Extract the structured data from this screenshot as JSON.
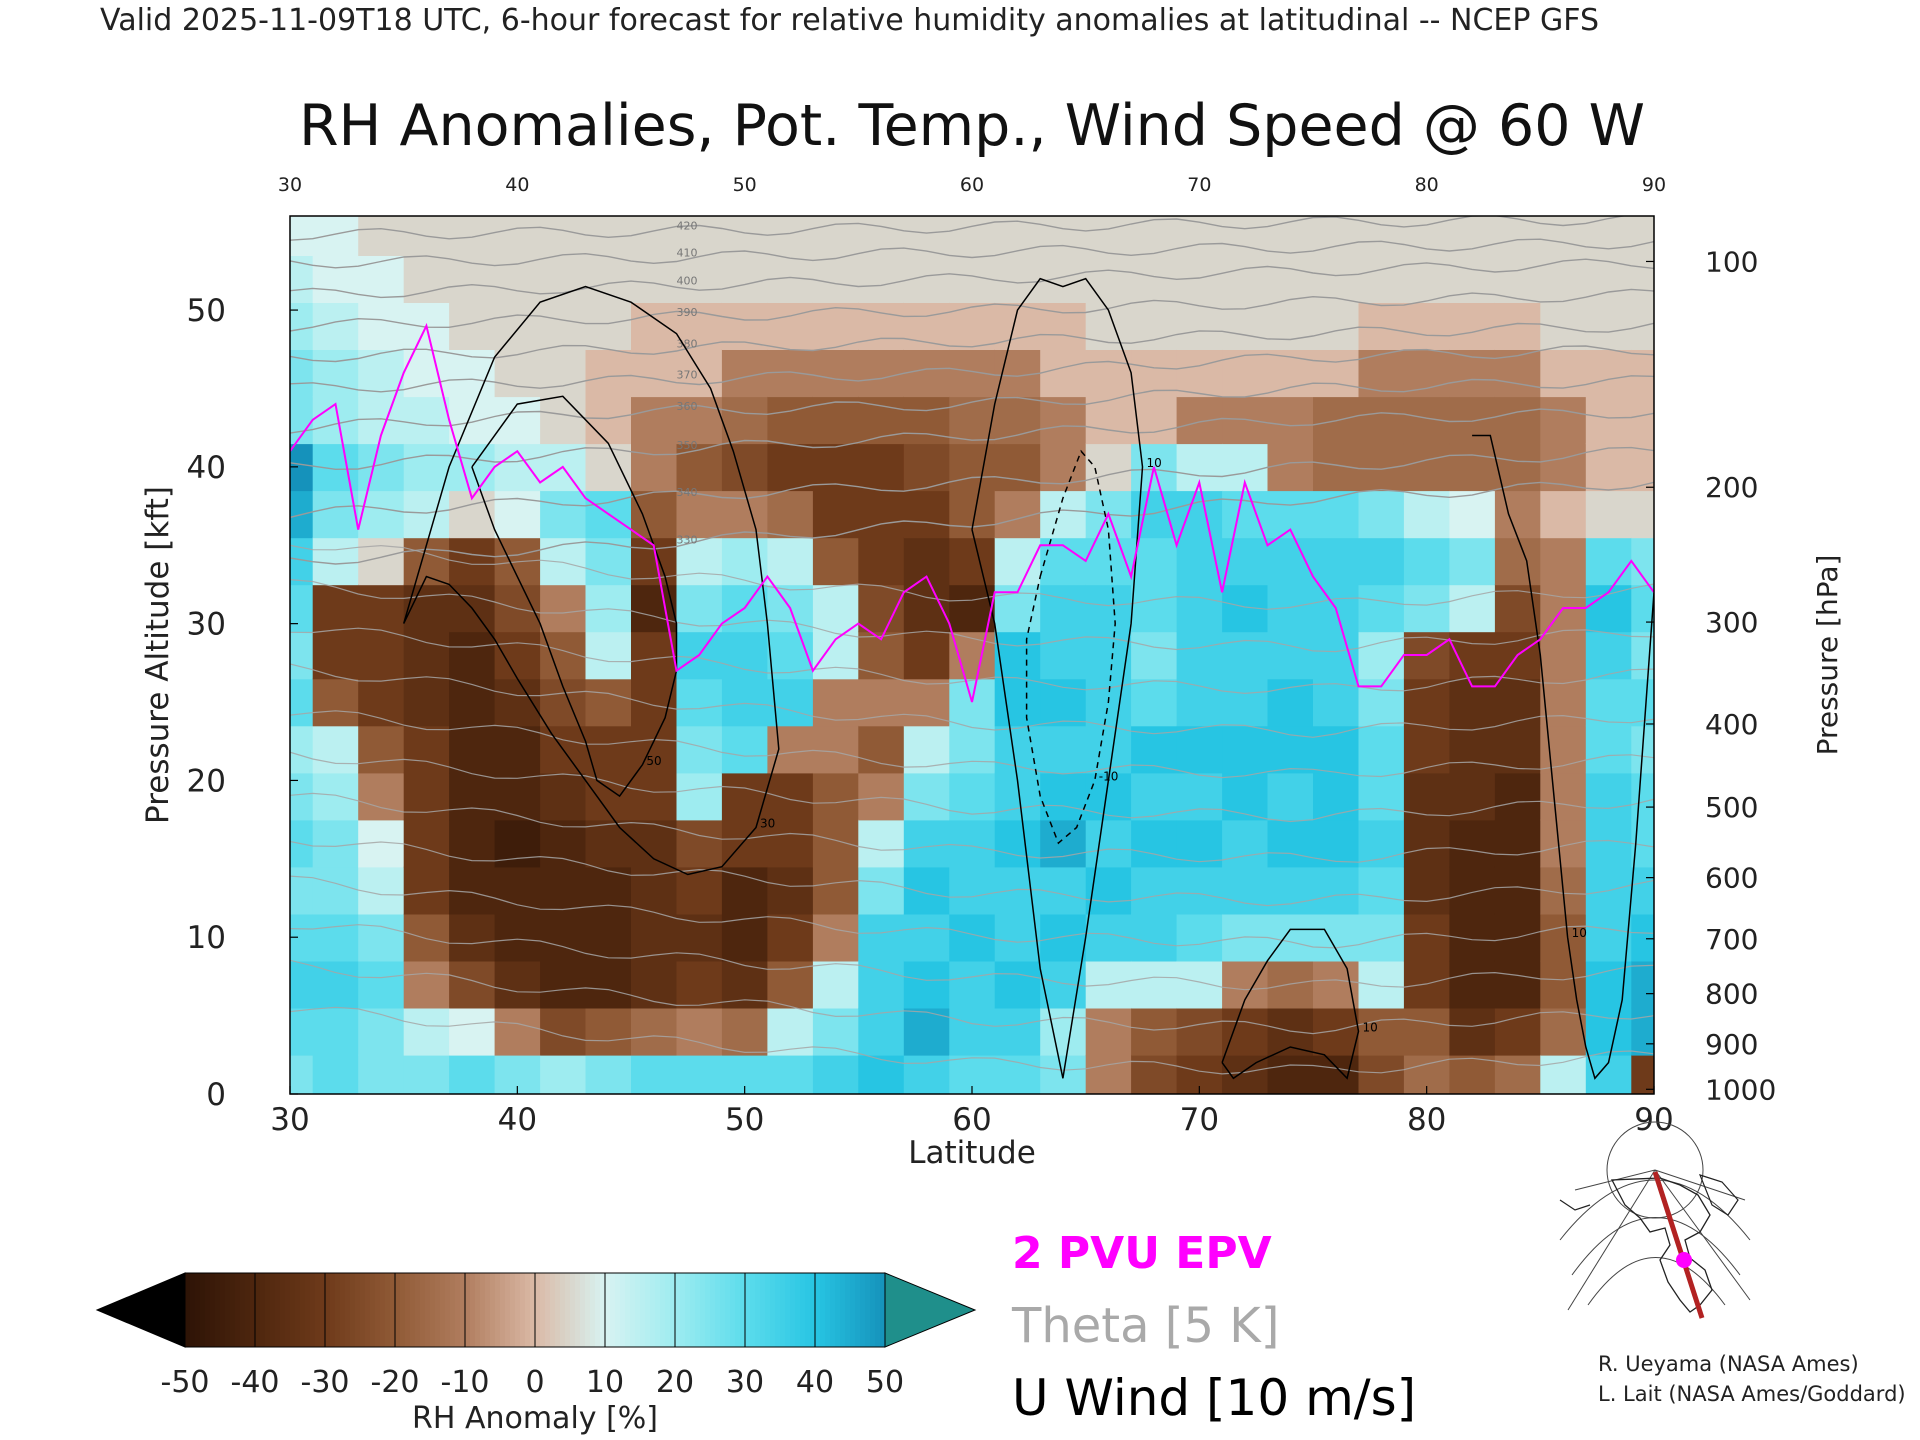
{
  "header": "Valid 2025-11-09T18 UTC, 6-hour forecast for relative humidity anomalies at latitudinal -- NCEP GFS",
  "chart_data": {
    "type": "heatmap",
    "title": "RH Anomalies, Pot. Temp., Wind Speed @ 60 W",
    "xlabel": "Latitude",
    "ylabel": "Pressure Altitude [kft]",
    "y2label": "Pressure [hPa]",
    "xlim": [
      30,
      90
    ],
    "ylim": [
      0,
      56
    ],
    "x_ticks": [
      "30",
      "40",
      "50",
      "60",
      "70",
      "80",
      "90"
    ],
    "y_ticks": [
      "0",
      "10",
      "20",
      "30",
      "40",
      "50"
    ],
    "pressure_ticks": [
      {
        "label": "100",
        "kft": 53.1
      },
      {
        "label": "200",
        "kft": 38.7
      },
      {
        "label": "300",
        "kft": 30.1
      },
      {
        "label": "400",
        "kft": 23.6
      },
      {
        "label": "500",
        "kft": 18.3
      },
      {
        "label": "600",
        "kft": 13.8
      },
      {
        "label": "700",
        "kft": 9.9
      },
      {
        "label": "800",
        "kft": 6.4
      },
      {
        "label": "900",
        "kft": 3.2
      },
      {
        "label": "1000",
        "kft": 0.3
      }
    ],
    "colorbar": {
      "label": "RH Anomaly [%]",
      "ticks": [
        "-50",
        "-40",
        "-30",
        "-20",
        "-10",
        "0",
        "10",
        "20",
        "30",
        "40",
        "50"
      ],
      "colors": [
        "#2d1306",
        "#4e260e",
        "#6e3a1a",
        "#905a36",
        "#b07d5e",
        "#dab9a6",
        "#d8f3f2",
        "#9eecf0",
        "#5cdcec",
        "#27c5e3",
        "#1592bb"
      ],
      "over_color": "#1f8f8b",
      "under_color": "#000000"
    },
    "legend": [
      {
        "label": "2 PVU EPV",
        "color": "#ff00ff"
      },
      {
        "label": "Theta [5 K]",
        "color": "#a9a9a9"
      },
      {
        "label": "U Wind [10 m/s]",
        "color": "#000000"
      }
    ],
    "rh_anomaly_columns": {
      "lat": [
        30,
        32,
        34,
        36,
        38,
        40,
        42,
        44,
        46,
        48,
        50,
        52,
        54,
        56,
        58,
        60,
        62,
        64,
        66,
        68,
        70,
        72,
        74,
        76,
        78,
        80,
        82,
        84,
        86,
        88,
        90
      ],
      "kft": [
        1,
        4,
        7,
        10,
        13,
        16,
        19,
        22,
        25,
        28,
        31,
        34,
        37,
        40,
        43,
        46,
        49,
        52,
        55
      ],
      "values": [
        [
          20,
          25,
          30,
          25,
          20,
          25,
          20,
          15,
          25,
          20,
          25,
          30,
          40,
          45,
          20,
          20,
          15,
          10,
          5
        ],
        [
          25,
          25,
          30,
          25,
          20,
          20,
          15,
          10,
          -20,
          -30,
          -30,
          10,
          20,
          25,
          15,
          15,
          10,
          5,
          5
        ],
        [
          20,
          20,
          25,
          20,
          10,
          5,
          -10,
          -20,
          -30,
          -30,
          -30,
          0,
          15,
          20,
          10,
          10,
          5,
          5,
          0
        ],
        [
          20,
          10,
          -10,
          -20,
          -30,
          -30,
          -30,
          -30,
          -35,
          -35,
          -35,
          -20,
          10,
          15,
          10,
          5,
          5,
          0,
          0
        ],
        [
          25,
          5,
          -25,
          -35,
          -40,
          -40,
          -40,
          -40,
          -40,
          -40,
          -35,
          -30,
          0,
          15,
          5,
          5,
          0,
          0,
          0
        ],
        [
          20,
          -10,
          -35,
          -40,
          -40,
          -45,
          -40,
          -40,
          -35,
          -30,
          -25,
          -20,
          5,
          10,
          5,
          0,
          0,
          0,
          0
        ],
        [
          15,
          -25,
          -40,
          -40,
          -40,
          -40,
          -35,
          -30,
          -25,
          -20,
          -10,
          10,
          20,
          10,
          0,
          0,
          0,
          0,
          0
        ],
        [
          20,
          -20,
          -40,
          -40,
          -40,
          -35,
          -30,
          -30,
          -20,
          10,
          15,
          20,
          25,
          0,
          -5,
          -5,
          0,
          0,
          0
        ],
        [
          25,
          -15,
          -35,
          -35,
          -35,
          -35,
          -30,
          -30,
          -30,
          -30,
          -40,
          -30,
          -20,
          -10,
          -10,
          -5,
          -5,
          0,
          0
        ],
        [
          25,
          -10,
          -30,
          -35,
          -30,
          -25,
          15,
          20,
          25,
          30,
          20,
          10,
          -10,
          -20,
          -10,
          -5,
          -5,
          0,
          0
        ],
        [
          25,
          -15,
          -35,
          -40,
          -40,
          -30,
          -30,
          25,
          30,
          30,
          25,
          15,
          -10,
          -25,
          -15,
          -10,
          -5,
          0,
          0
        ],
        [
          25,
          10,
          -20,
          -30,
          -35,
          -30,
          -30,
          -10,
          30,
          25,
          20,
          10,
          -15,
          -30,
          -20,
          -10,
          -5,
          0,
          0
        ],
        [
          30,
          20,
          10,
          -10,
          -20,
          -20,
          -20,
          -10,
          -10,
          10,
          10,
          -20,
          -30,
          -30,
          -20,
          -10,
          -5,
          0,
          0
        ],
        [
          35,
          30,
          30,
          30,
          20,
          10,
          -10,
          -20,
          -10,
          -20,
          -25,
          -30,
          -30,
          -30,
          -20,
          -10,
          -5,
          0,
          0
        ],
        [
          30,
          40,
          35,
          30,
          35,
          30,
          20,
          10,
          -10,
          -30,
          -35,
          -35,
          -30,
          -25,
          -20,
          -10,
          -5,
          0,
          0
        ],
        [
          25,
          30,
          30,
          35,
          30,
          30,
          25,
          20,
          20,
          -10,
          -40,
          -30,
          -20,
          -20,
          -15,
          -10,
          -5,
          0,
          0
        ],
        [
          25,
          30,
          35,
          30,
          30,
          35,
          30,
          30,
          35,
          35,
          20,
          10,
          -10,
          -20,
          -15,
          -10,
          -5,
          0,
          0
        ],
        [
          20,
          15,
          30,
          35,
          30,
          40,
          35,
          30,
          35,
          30,
          30,
          25,
          10,
          -10,
          -10,
          -5,
          -5,
          0,
          0
        ],
        [
          -10,
          -10,
          10,
          30,
          35,
          30,
          35,
          30,
          30,
          30,
          30,
          25,
          20,
          0,
          -5,
          -5,
          0,
          0,
          0
        ],
        [
          -25,
          -20,
          10,
          30,
          30,
          35,
          30,
          35,
          25,
          20,
          25,
          25,
          30,
          20,
          -5,
          -5,
          0,
          0,
          0
        ],
        [
          -30,
          -25,
          10,
          25,
          30,
          35,
          30,
          35,
          30,
          30,
          30,
          30,
          30,
          10,
          -10,
          -5,
          0,
          0,
          0
        ],
        [
          -35,
          -30,
          -10,
          20,
          30,
          30,
          35,
          35,
          30,
          30,
          35,
          30,
          25,
          10,
          -10,
          -5,
          0,
          0,
          0
        ],
        [
          -40,
          -35,
          -15,
          20,
          30,
          35,
          30,
          35,
          35,
          30,
          30,
          30,
          25,
          -10,
          -10,
          -5,
          0,
          0,
          0
        ],
        [
          -40,
          -30,
          -10,
          20,
          30,
          35,
          35,
          35,
          30,
          30,
          30,
          30,
          25,
          -15,
          -15,
          -5,
          0,
          0,
          0
        ],
        [
          -25,
          -20,
          10,
          20,
          25,
          30,
          25,
          25,
          20,
          15,
          25,
          30,
          20,
          -15,
          -15,
          -10,
          -5,
          0,
          0
        ],
        [
          -15,
          -20,
          -30,
          -30,
          -35,
          -35,
          -35,
          -30,
          -30,
          -25,
          20,
          25,
          10,
          -15,
          -15,
          -10,
          -5,
          0,
          0
        ],
        [
          -20,
          -35,
          -40,
          -40,
          -40,
          -40,
          -35,
          -35,
          -35,
          -30,
          10,
          20,
          5,
          -15,
          -15,
          -10,
          -5,
          0,
          0
        ],
        [
          -15,
          -30,
          -40,
          -40,
          -40,
          -40,
          -40,
          -35,
          -35,
          -30,
          -25,
          -15,
          -10,
          -15,
          -15,
          -10,
          -5,
          0,
          0
        ],
        [
          10,
          -15,
          -20,
          -20,
          -15,
          -10,
          -10,
          -10,
          -10,
          -10,
          -10,
          -10,
          -5,
          -10,
          -10,
          -5,
          0,
          0,
          0
        ],
        [
          30,
          35,
          35,
          30,
          30,
          30,
          30,
          25,
          25,
          30,
          35,
          25,
          0,
          -5,
          -5,
          -5,
          0,
          0,
          0
        ],
        [
          -30,
          40,
          40,
          35,
          30,
          25,
          25,
          20,
          25,
          20,
          25,
          20,
          0,
          -5,
          -5,
          -5,
          0,
          0,
          0
        ]
      ]
    },
    "u_wind_contours": [
      {
        "label": "30",
        "lat": [
          35.0,
          37.0,
          39.0,
          41.0,
          43.0,
          45.0,
          47.0,
          48.5,
          49.5,
          50.5,
          51.0,
          51.5,
          50.5,
          49.0,
          47.5,
          46.0,
          44.5,
          43.0,
          41.5,
          40.0,
          39.0,
          38.0,
          37.0,
          36.0,
          35.0
        ],
        "kft": [
          30.0,
          40.0,
          47.0,
          50.5,
          51.5,
          50.5,
          48.5,
          45.0,
          41.0,
          36.0,
          30.0,
          22.0,
          17.0,
          14.5,
          14.0,
          15.0,
          17.0,
          20.0,
          23.0,
          26.5,
          29.0,
          31.0,
          32.5,
          33.0,
          30.0
        ]
      },
      {
        "label": "50",
        "lat": [
          38.0,
          40.0,
          42.0,
          44.0,
          45.5,
          46.5,
          47.0,
          47.0,
          46.5,
          45.5,
          44.5,
          43.5,
          43.0,
          42.0,
          41.0,
          40.0,
          39.0,
          38.5,
          38.0
        ],
        "kft": [
          40.0,
          44.0,
          44.5,
          41.5,
          37.0,
          33.0,
          30.0,
          27.0,
          24.0,
          21.0,
          19.0,
          20.0,
          22.5,
          26.0,
          30.0,
          33.0,
          36.0,
          38.0,
          40.0
        ]
      },
      {
        "label": "10",
        "lat": [
          60.0,
          61.0,
          62.0,
          63.0,
          64.0,
          65.0,
          66.0,
          67.0,
          67.5,
          67.0,
          66.0,
          65.0,
          64.0,
          63.0,
          62.0,
          61.0,
          60.0
        ],
        "kft": [
          36.0,
          44.0,
          50.0,
          52.0,
          51.5,
          52.0,
          50.0,
          46.0,
          40.0,
          30.0,
          20.0,
          10.0,
          1.0,
          8.0,
          20.0,
          30.0,
          36.0
        ]
      },
      {
        "label": "-10",
        "lat": [
          63.0,
          64.0,
          64.8,
          65.4,
          66.0,
          66.3,
          66.0,
          65.4,
          64.6,
          63.8,
          63.0,
          62.4,
          62.4,
          63.0
        ],
        "kft": [
          33.0,
          38.0,
          41.0,
          40.0,
          36.0,
          30.0,
          25.0,
          20.0,
          17.0,
          16.0,
          19.0,
          24.0,
          29.0,
          33.0
        ]
      },
      {
        "label": "10",
        "lat": [
          71.0,
          72.0,
          73.0,
          74.0,
          75.5,
          76.5,
          77.0,
          76.5,
          75.5,
          74.0,
          72.5,
          71.5,
          71.0
        ],
        "kft": [
          2.0,
          6.0,
          8.5,
          10.5,
          10.5,
          8.0,
          4.0,
          1.0,
          2.5,
          3.0,
          2.0,
          1.0,
          2.0
        ]
      },
      {
        "label": "10",
        "lat": [
          82.0,
          82.8,
          83.6,
          84.4,
          85.0,
          85.4,
          85.8,
          86.2,
          86.6,
          87.0,
          87.4,
          88.0,
          88.6,
          89.2,
          90.0
        ],
        "kft": [
          42.0,
          42.0,
          37.0,
          34.0,
          28.0,
          22.0,
          16.0,
          10.0,
          6.0,
          3.0,
          1.0,
          2.0,
          6.0,
          16.0,
          32.0
        ]
      }
    ],
    "epv_2pvu": {
      "lat": [
        30.0,
        31.0,
        32.0,
        33.0,
        34.0,
        35.0,
        36.0,
        37.0,
        38.0,
        39.0,
        40.0,
        41.0,
        42.0,
        43.0,
        44.0,
        45.0,
        46.0,
        47.0,
        48.0,
        49.0,
        50.0,
        51.0,
        52.0,
        53.0,
        54.0,
        55.0,
        56.0,
        57.0,
        58.0,
        59.0,
        60.0,
        61.0,
        62.0,
        63.0,
        64.0,
        65.0,
        66.0,
        67.0,
        68.0,
        69.0,
        70.0,
        71.0,
        72.0,
        73.0,
        74.0,
        75.0,
        76.0,
        77.0,
        78.0,
        79.0,
        80.0,
        81.0,
        82.0,
        83.0,
        84.0,
        85.0,
        86.0,
        87.0,
        88.0,
        89.0,
        90.0
      ],
      "kft": [
        41.0,
        43.0,
        44.0,
        36.0,
        42.0,
        46.0,
        49.0,
        43.0,
        38.0,
        40.0,
        41.0,
        39.0,
        40.0,
        38.0,
        37.0,
        36.0,
        35.0,
        27.0,
        28.0,
        30.0,
        31.0,
        33.0,
        31.0,
        27.0,
        29.0,
        30.0,
        29.0,
        32.0,
        33.0,
        30.0,
        25.0,
        32.0,
        32.0,
        35.0,
        35.0,
        34.0,
        37.0,
        33.0,
        40.0,
        35.0,
        39.0,
        32.0,
        39.0,
        35.0,
        36.0,
        33.0,
        31.0,
        26.0,
        26.0,
        28.0,
        28.0,
        29.0,
        26.0,
        26.0,
        28.0,
        29.0,
        31.0,
        31.0,
        32.0,
        34.0,
        32.0
      ]
    },
    "theta_isentropes": {
      "labels": [
        "330",
        "340",
        "350",
        "360",
        "370",
        "380",
        "390",
        "400",
        "410",
        "420"
      ],
      "lat": [
        30,
        45,
        60,
        75,
        90
      ],
      "kft_upper": [
        [
          34.0,
          35.0,
          36.5,
          38.0,
          39.0
        ],
        [
          37.0,
          38.0,
          39.0,
          40.0,
          41.0
        ],
        [
          40.0,
          41.0,
          42.0,
          43.0,
          43.5
        ],
        [
          42.5,
          43.5,
          44.0,
          45.0,
          45.5
        ],
        [
          45.0,
          45.5,
          46.0,
          47.0,
          47.5
        ],
        [
          47.0,
          47.5,
          48.0,
          48.5,
          49.0
        ],
        [
          49.0,
          49.5,
          50.0,
          50.5,
          51.0
        ],
        [
          51.0,
          51.5,
          52.0,
          52.5,
          53.0
        ],
        [
          53.0,
          53.3,
          53.7,
          54.0,
          54.3
        ],
        [
          54.8,
          55.0,
          55.3,
          55.6,
          55.8
        ]
      ]
    }
  },
  "map_inset": {
    "credits": [
      "R. Ueyama (NASA Ames)",
      "L. Lait (NASA Ames/Goddard)"
    ]
  }
}
